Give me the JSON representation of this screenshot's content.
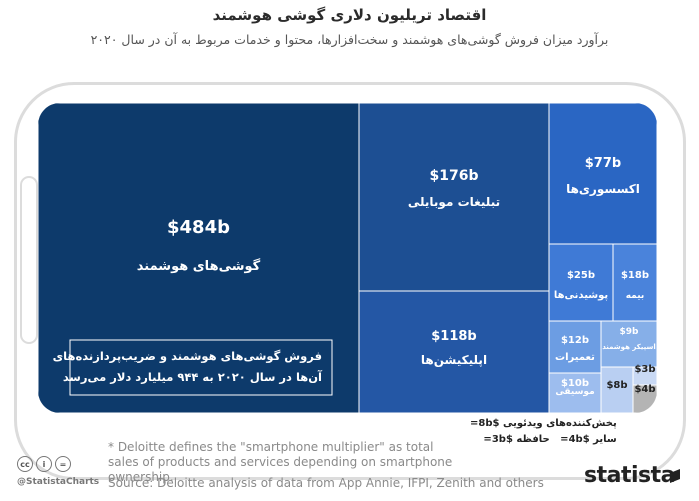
{
  "header": {
    "title": "اقتصاد تریلیون دلاری گوشی هوشمند",
    "subtitle": "برآورد میزان فروش گوشی‌های هوشمند و سخت‌افزارها، محتوا و خدمات مربوط به آن در سال ۲۰۲۰"
  },
  "chart_data": {
    "type": "treemap",
    "unit": "billion USD",
    "cells": [
      {
        "label": "گوشی‌های هوشمند",
        "value_label": "$484b",
        "value": 484,
        "color": "#0d3a6b"
      },
      {
        "label": "تبلیغات موبایلی",
        "value_label": "$176b",
        "value": 176,
        "color": "#1d4f93"
      },
      {
        "label": "اپلیکیشن‌ها",
        "value_label": "$118b",
        "value": 118,
        "color": "#2457a5"
      },
      {
        "label": "اکسسوری‌ها",
        "value_label": "$77b",
        "value": 77,
        "color": "#2a66c3"
      },
      {
        "label": "پوشیدنی‌ها",
        "value_label": "$25b",
        "value": 25,
        "color": "#3f7ad6"
      },
      {
        "label": "بیمه",
        "value_label": "$18b",
        "value": 18,
        "color": "#4a83db"
      },
      {
        "label": "تعمیرات",
        "value_label": "$12b",
        "value": 12,
        "color": "#6c9de3"
      },
      {
        "label": "اسپیکر هوشمند",
        "value_label": "$9b",
        "value": 9,
        "color": "#86afe8"
      },
      {
        "label": "موسیقی",
        "value_label": "$10b",
        "value": 10,
        "color": "#9dbdee"
      },
      {
        "label": "",
        "value_label": "$8b",
        "value": 8,
        "color": "#b9cff2"
      },
      {
        "label": "",
        "value_label": "$3b",
        "value": 3,
        "color": "#c9d9f4"
      },
      {
        "label": "",
        "value_label": "$4b",
        "value": 4,
        "color": "#b4b4b4"
      }
    ],
    "annotation": "فروش گوشی‌های هوشمند و ضریب‌پردازنده‌های آن‌ها در سال ۲۰۲۰ به ۹۴۴ میلیارد دلار می‌رسد",
    "legend": [
      {
        "label": "پخش‌کننده‌های ویدئویی",
        "value_label": "$8b="
      },
      {
        "label": "حافظه",
        "value_label": "$3b="
      },
      {
        "label": "سایر",
        "value_label": "$4b="
      }
    ]
  },
  "footer": {
    "footnote": "* Deloitte defines the \"smartphone multiplier\" as total sales of products and services depending on smartphone ownership.",
    "source": "Source: Deloitte analysis of data from App Annie, IFPI, Zenith and others",
    "handle": "@StatistaCharts",
    "brand": "statista",
    "cc_icons": [
      "cc",
      "i",
      "="
    ]
  }
}
